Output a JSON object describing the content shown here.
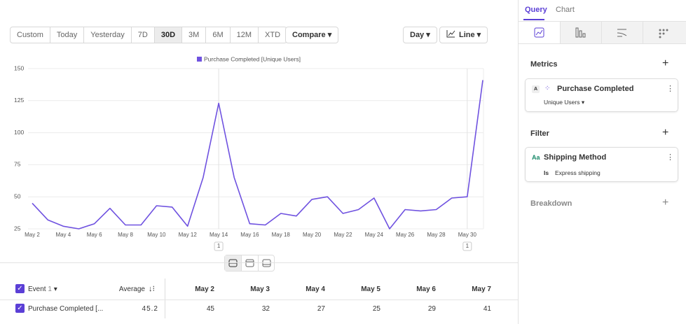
{
  "toolbar": {
    "ranges": [
      "Custom",
      "Today",
      "Yesterday",
      "7D",
      "30D",
      "3M",
      "6M",
      "12M",
      "XTD"
    ],
    "selected_range": "30D",
    "compare": "Compare",
    "interval": "Day",
    "chart_kind": "Line"
  },
  "chart_data": {
    "type": "line",
    "categories": [
      "May 2",
      null,
      "May 4",
      null,
      "May 6",
      null,
      "May 8",
      null,
      "May 10",
      null,
      "May 12",
      null,
      "May 14",
      null,
      "May 16",
      null,
      "May 18",
      null,
      "May 20",
      null,
      "May 22",
      null,
      "May 24",
      null,
      "May 26",
      null,
      "May 28",
      null,
      "May 30",
      null
    ],
    "series": [
      {
        "name": "Purchase Completed [Unique Users]",
        "color": "#6f52e0",
        "values": [
          45,
          32,
          27,
          25,
          29,
          41,
          28,
          28,
          43,
          42,
          27,
          65,
          123,
          65,
          29,
          28,
          37,
          35,
          48,
          50,
          37,
          40,
          49,
          25,
          40,
          39,
          40,
          49,
          50,
          141
        ]
      }
    ],
    "ylim": [
      25,
      150
    ],
    "yticks": [
      25,
      50,
      75,
      100,
      125,
      150
    ],
    "grid": true,
    "annotations": [
      {
        "x": "May 14",
        "label": "1"
      },
      {
        "x": "May 30",
        "label": "1"
      }
    ]
  },
  "table": {
    "header": {
      "event": "Event",
      "event_count": "1",
      "average": "Average",
      "dates": [
        "May 2",
        "May 3",
        "May 4",
        "May 5",
        "May 6",
        "May 7"
      ]
    },
    "rows": [
      {
        "event": "Purchase Completed [...",
        "average": "45.2",
        "values": [
          "45",
          "32",
          "27",
          "25",
          "29",
          "41"
        ]
      }
    ]
  },
  "sidebar": {
    "tabs": [
      "Query",
      "Chart"
    ],
    "metrics": {
      "title": "Metrics",
      "letter": "A",
      "event": "Purchase Completed",
      "measure": "Unique Users"
    },
    "filter": {
      "title": "Filter",
      "icon": "Aa",
      "property": "Shipping Method",
      "operator": "Is",
      "value": "Express shipping"
    },
    "breakdown": "Breakdown"
  }
}
